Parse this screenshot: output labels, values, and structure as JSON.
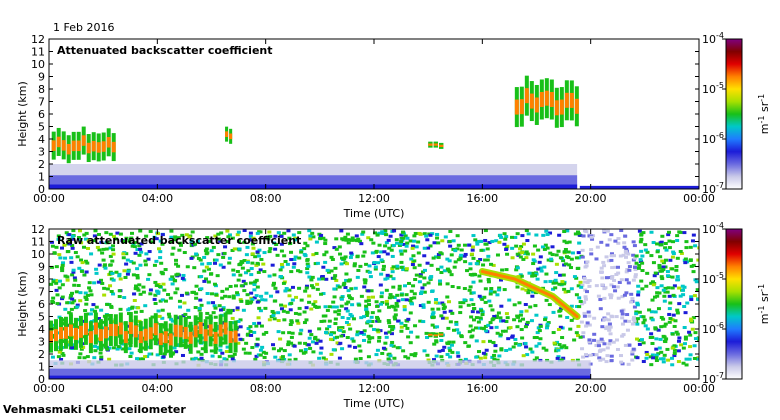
{
  "date": "1 Feb 2016",
  "footer": "Vehmasmaki CL51 ceilometer",
  "colors": {
    "colormap": [
      "#ffffff",
      "#c9c9e8",
      "#6a6ae0",
      "#1c1cd8",
      "#1f7cff",
      "#00c8c8",
      "#18c018",
      "#a8e000",
      "#ffe000",
      "#ff8000",
      "#e00000",
      "#800000",
      "#800080"
    ]
  },
  "chart_data": [
    {
      "type": "heatmap",
      "title": "Attenuated backscatter coefficient",
      "xlabel": "Time (UTC)",
      "ylabel": "Height (km)",
      "x_ticks": [
        "00:00",
        "04:00",
        "08:00",
        "12:00",
        "16:00",
        "20:00",
        "00:00"
      ],
      "x_range_hours": [
        0,
        24
      ],
      "y_ticks": [
        0,
        1,
        2,
        3,
        4,
        5,
        6,
        7,
        8,
        9,
        10,
        11,
        12
      ],
      "ylim": [
        0,
        12
      ],
      "colorbar": {
        "label": "m-1 sr-1",
        "scale": "log",
        "range": [
          1e-07,
          0.0001
        ],
        "tick_labels": [
          "10-4",
          "10-5",
          "10-6",
          "10-7"
        ]
      },
      "features": [
        {
          "label": "boundary layer",
          "hours": [
            0,
            19.5
          ],
          "height_km": [
            0,
            2.0
          ]
        },
        {
          "label": "cloud layers",
          "hours": [
            0.1,
            2.5
          ],
          "height_km": [
            2.2,
            5.0
          ]
        },
        {
          "label": "cloud",
          "hours": [
            6.5,
            6.8
          ],
          "height_km": [
            3.5,
            5.0
          ]
        },
        {
          "label": "cloud",
          "hours": [
            14.0,
            14.6
          ],
          "height_km": [
            3.2,
            3.8
          ]
        },
        {
          "label": "high cloud",
          "hours": [
            17.2,
            19.6
          ],
          "height_km": [
            5.0,
            9.0
          ]
        }
      ]
    },
    {
      "type": "heatmap",
      "title": "Raw attenuated backscatter coefficient",
      "xlabel": "Time (UTC)",
      "ylabel": "Height (km)",
      "x_ticks": [
        "00:00",
        "04:00",
        "08:00",
        "12:00",
        "16:00",
        "20:00",
        "00:00"
      ],
      "x_range_hours": [
        0,
        24
      ],
      "y_ticks": [
        0,
        1,
        2,
        3,
        4,
        5,
        6,
        7,
        8,
        9,
        10,
        11,
        12
      ],
      "ylim": [
        0,
        12
      ],
      "colorbar": {
        "label": "m-1 sr-1",
        "scale": "log",
        "range": [
          1e-07,
          0.0001
        ],
        "tick_labels": [
          "10-4",
          "10-5",
          "10-6",
          "10-7"
        ]
      },
      "features": [
        {
          "label": "noisy background",
          "hours": [
            0,
            24
          ],
          "height_km": [
            2,
            12
          ]
        },
        {
          "label": "cloud layer",
          "hours": [
            0,
            7.0
          ],
          "height_km": [
            2.0,
            5.2
          ]
        },
        {
          "label": "cloud",
          "hours": [
            14.0,
            14.6
          ],
          "height_km": [
            3.3,
            3.8
          ]
        },
        {
          "label": "descending high cloud",
          "hours": [
            16.0,
            19.5
          ],
          "height_km": [
            5.0,
            8.6
          ]
        },
        {
          "label": "boundary layer",
          "hours": [
            0,
            20
          ],
          "height_km": [
            0,
            1.5
          ]
        }
      ]
    }
  ]
}
